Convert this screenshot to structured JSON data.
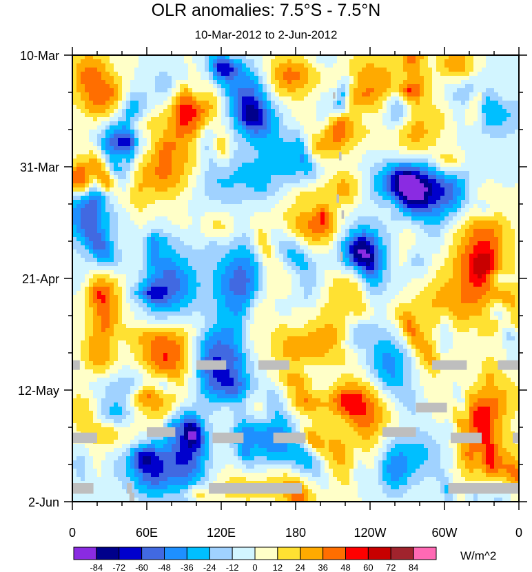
{
  "chart_data": {
    "type": "heatmap",
    "title": "OLR anomalies: 7.5°S - 7.5°N",
    "subtitle": "10-Mar-2012 to 2-Jun-2012",
    "units": "W/m^2",
    "x_ticks": [
      {
        "lon": 0,
        "label": "0"
      },
      {
        "lon": 60,
        "label": "60E"
      },
      {
        "lon": 120,
        "label": "120E"
      },
      {
        "lon": 180,
        "label": "180"
      },
      {
        "lon": 240,
        "label": "120W"
      },
      {
        "lon": 300,
        "label": "60W"
      },
      {
        "lon": 360,
        "label": "0"
      }
    ],
    "x_range": [
      0,
      360
    ],
    "y_ticks": [
      {
        "day": 0,
        "label": "10-Mar"
      },
      {
        "day": 21,
        "label": "31-Mar"
      },
      {
        "day": 42,
        "label": "21-Apr"
      },
      {
        "day": 63,
        "label": "12-May"
      },
      {
        "day": 84,
        "label": "2-Jun"
      }
    ],
    "y_range_days": [
      0,
      84
    ],
    "colorbar": {
      "levels": [
        -84,
        -72,
        -60,
        -48,
        -36,
        -24,
        -12,
        0,
        12,
        24,
        36,
        48,
        60,
        72,
        84
      ],
      "colors": [
        "#8a2be2",
        "#00008b",
        "#0000cd",
        "#4169e1",
        "#1e90ff",
        "#00bfff",
        "#a0d2ff",
        "#d2f5ff",
        "#ffffc8",
        "#ffe132",
        "#ffaa00",
        "#ff6e00",
        "#ff0000",
        "#c80000",
        "#a0232d",
        "#ff69b4"
      ]
    },
    "missing_color": "#bebebe",
    "field_description_note": null
  }
}
